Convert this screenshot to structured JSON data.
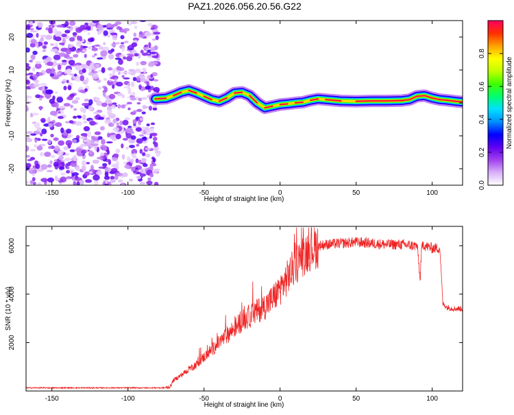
{
  "title": "PAZ1.2026.056.20.56.G22",
  "colors": {
    "snr_line": "#ee2222",
    "colormap": [
      "#ffffff",
      "#d8b0f8",
      "#a040f0",
      "#6000f0",
      "#0000ff",
      "#0090ff",
      "#00e0ff",
      "#00ff70",
      "#40ff00",
      "#c0ff00",
      "#ffff00",
      "#ffa000",
      "#ff3000",
      "#ff0060"
    ]
  },
  "chart_data": [
    {
      "type": "heatmap",
      "name": "spectrogram",
      "xlabel": "Height of straight line (km)",
      "ylabel": "Frequency (Hz)",
      "xlim": [
        -167,
        120
      ],
      "ylim": [
        -25,
        25
      ],
      "xticks": [
        -150,
        -100,
        -50,
        0,
        50,
        100
      ],
      "yticks": [
        -20,
        -10,
        0,
        10,
        20
      ],
      "noise_region_x": [
        -167,
        -80
      ],
      "signal_ridge": {
        "x": [
          -82,
          -75,
          -70,
          -65,
          -60,
          -55,
          -50,
          -45,
          -40,
          -35,
          -30,
          -25,
          -20,
          -15,
          -10,
          -5,
          0,
          5,
          10,
          15,
          20,
          25,
          30,
          40,
          50,
          60,
          70,
          80,
          85,
          90,
          95,
          100,
          105,
          110,
          115,
          120
        ],
        "freq": [
          1.2,
          1.4,
          2.2,
          3.2,
          3.8,
          3.0,
          2.0,
          1.0,
          0.5,
          1.5,
          3.0,
          3.2,
          2.2,
          0.0,
          -1.5,
          -1.0,
          -0.5,
          -0.3,
          0.0,
          0.2,
          0.8,
          1.2,
          1.0,
          0.6,
          0.5,
          0.6,
          0.6,
          0.7,
          1.0,
          2.0,
          2.2,
          1.5,
          1.0,
          0.8,
          0.5,
          0.3
        ]
      },
      "colorbar": {
        "label": "Normalized spectral amplitude",
        "range": [
          0.0,
          1.0
        ],
        "ticks": [
          0.0,
          0.2,
          0.4,
          0.6,
          0.8
        ]
      }
    },
    {
      "type": "line",
      "name": "snr",
      "xlabel": "Height of straight line (km)",
      "ylabel": "SNR (10 * v/v)",
      "xlim": [
        -167,
        120
      ],
      "ylim": [
        0,
        6800
      ],
      "xticks": [
        -150,
        -100,
        -50,
        0,
        50,
        100
      ],
      "yticks": [
        2000,
        4000,
        6000
      ],
      "series": [
        {
          "name": "SNR",
          "x": [
            -167,
            -140,
            -110,
            -85,
            -78,
            -74,
            -72,
            -70,
            -65,
            -60,
            -55,
            -50,
            -45,
            -40,
            -35,
            -30,
            -25,
            -20,
            -15,
            -10,
            -5,
            0,
            5,
            10,
            15,
            20,
            25,
            30,
            40,
            50,
            60,
            70,
            80,
            88,
            90,
            91,
            92,
            93,
            94,
            95,
            100,
            104,
            105,
            106,
            107,
            110,
            115,
            120
          ],
          "y": [
            130,
            130,
            130,
            130,
            130,
            140,
            200,
            450,
            650,
            900,
            1100,
            1400,
            1700,
            2000,
            2300,
            2600,
            2900,
            3100,
            3300,
            3500,
            3800,
            4200,
            4700,
            5200,
            5600,
            5900,
            6000,
            6050,
            6100,
            6150,
            6100,
            6050,
            6050,
            6000,
            6000,
            5500,
            4500,
            5800,
            6100,
            6000,
            5900,
            5900,
            5900,
            4800,
            3600,
            3450,
            3400,
            3400
          ]
        }
      ]
    }
  ]
}
